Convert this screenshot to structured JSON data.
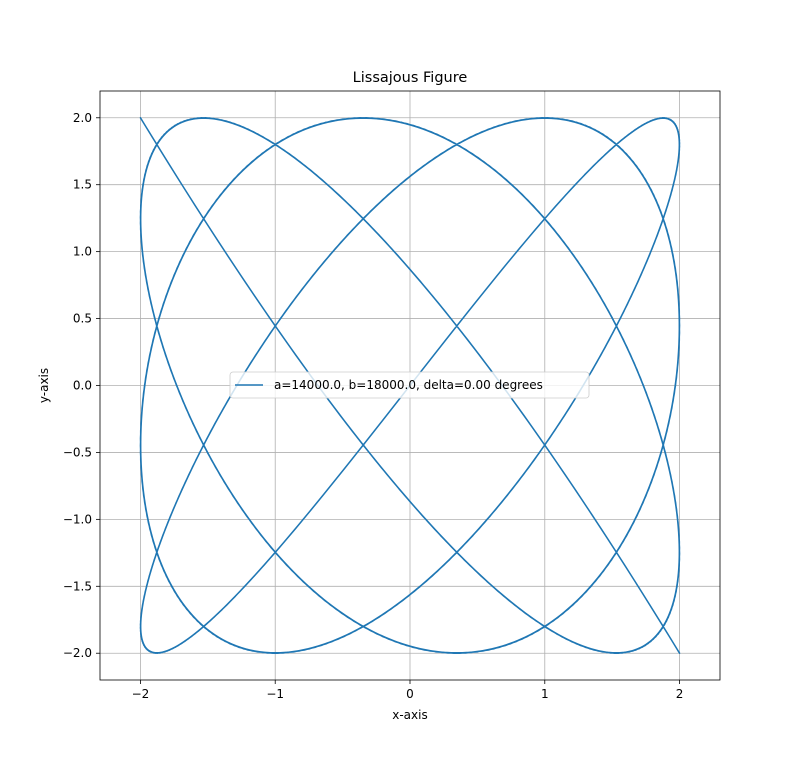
{
  "chart_data": {
    "type": "line",
    "title": "Lissajous Figure",
    "xlabel": "x-axis",
    "ylabel": "y-axis",
    "xlim": [
      -2.3,
      2.3
    ],
    "ylim": [
      -2.2,
      2.2
    ],
    "x_ticks": [
      -2,
      -1,
      0,
      1,
      2
    ],
    "x_tick_labels": [
      "−2",
      "−1",
      "0",
      "1",
      "2"
    ],
    "y_ticks": [
      2.0,
      1.5,
      1.0,
      0.5,
      0.0,
      -0.5,
      -1.0,
      -1.5,
      -2.0
    ],
    "y_tick_labels": [
      "2.0",
      "1.5",
      "1.0",
      "0.5",
      "0.0",
      "−0.5",
      "−1.0",
      "−1.5",
      "−2.0"
    ],
    "grid": true,
    "legend_position": "center",
    "series": [
      {
        "name": "a=14000.0, b=18000.0, delta=0.00 degrees",
        "color": "#1f77b4",
        "x_amplitude": 2,
        "y_amplitude": 2,
        "a": 14000.0,
        "b": 18000.0,
        "delta_degrees": 0.0
      }
    ]
  }
}
